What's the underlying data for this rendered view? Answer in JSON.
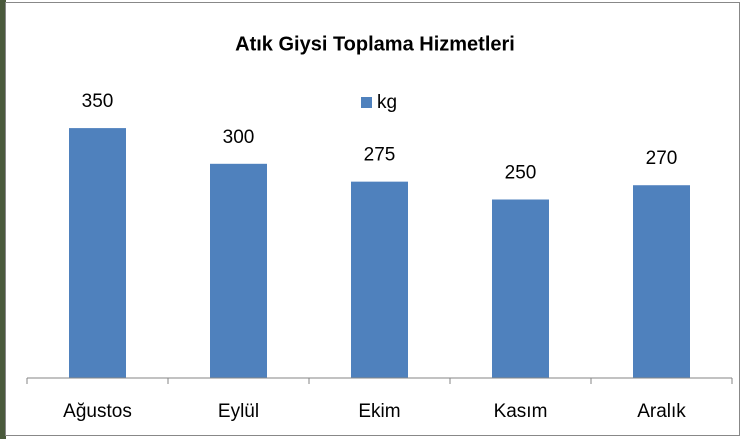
{
  "chart_data": {
    "type": "bar",
    "title": "Atık Giysi Toplama Hizmetleri",
    "categories": [
      "Ağustos",
      "Eylül",
      "Ekim",
      "Kasım",
      "Aralık"
    ],
    "series": [
      {
        "name": "kg",
        "color": "#4f81bd",
        "values": [
          350,
          300,
          275,
          250,
          270
        ]
      }
    ],
    "legend": "top",
    "data_labels": true
  }
}
